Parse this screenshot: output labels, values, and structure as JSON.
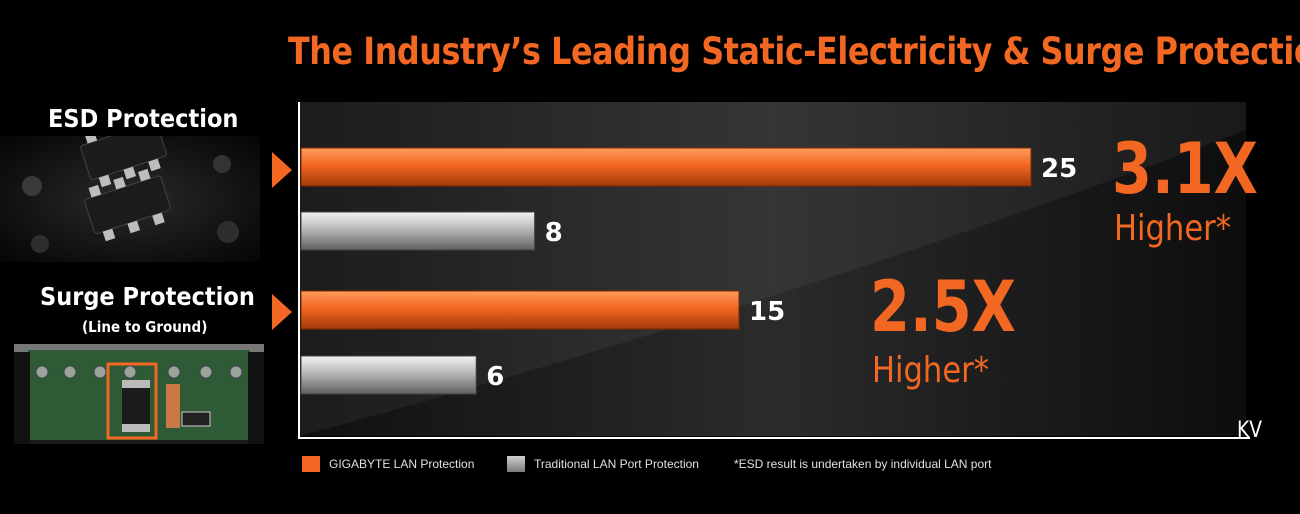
{
  "title": "The Industry’s Leading Static-Electricity & Surge Protection",
  "groups": [
    {
      "label": "ESD Protection",
      "sublabel": "",
      "ratio": "3.1X",
      "ratio_sub": "Higher*"
    },
    {
      "label": "Surge Protection",
      "sublabel": "(Line to Ground)",
      "ratio": "2.5X",
      "ratio_sub": "Higher*"
    }
  ],
  "chart_data": {
    "type": "bar",
    "orientation": "horizontal",
    "categories": [
      "ESD Protection",
      "Surge Protection"
    ],
    "series": [
      {
        "name": "GIGABYTE LAN Protection",
        "values": [
          25,
          15
        ],
        "color": "#f26722"
      },
      {
        "name": "Traditional LAN Port Protection",
        "values": [
          8,
          6
        ],
        "color": "#b0b0b0"
      }
    ],
    "unit_label": "KV",
    "xlim": [
      0,
      29
    ],
    "grid": false,
    "legend_position": "bottom-left",
    "footnote": "*ESD result is undertaken by individual LAN port"
  },
  "colors": {
    "accent": "#f26722",
    "background": "#000000",
    "text": "#ffffff"
  }
}
